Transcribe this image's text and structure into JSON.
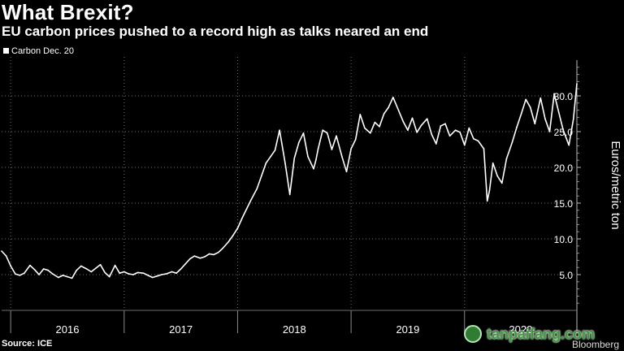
{
  "header": {
    "title": "What Brexit?",
    "subtitle": "EU carbon prices pushed to a record high as talks neared an end"
  },
  "footer": {
    "source": "Source: ICE",
    "brand": "Bloomberg"
  },
  "watermark": {
    "text": "tanpaifang.com"
  },
  "colors": {
    "background": "#000000",
    "line": "#ffffff",
    "grid": "#6e6e6e",
    "watermark": "#3b9b3b"
  },
  "chart_data": {
    "type": "line",
    "title": "What Brexit?",
    "subtitle": "EU carbon prices pushed to a record high as talks neared an end",
    "ylabel": "Euros/metric ton",
    "xlabel": "",
    "ylim": [
      0,
      35
    ],
    "xlim": [
      2015.92,
      2020.99
    ],
    "yticks": [
      5,
      10,
      15,
      20,
      25,
      30
    ],
    "ytick_labels": [
      "5.0",
      "10.0",
      "15.0",
      "20.0",
      "25.0",
      "30.0"
    ],
    "x_categories": [
      "2016",
      "2017",
      "2018",
      "2019",
      "2020"
    ],
    "year_bounds": [
      2016,
      2017,
      2018,
      2019,
      2020
    ],
    "grid": true,
    "legend_position": "top-left",
    "series": [
      {
        "name": "Carbon Dec. 20",
        "x": [
          2015.92,
          2015.96,
          2016.0,
          2016.04,
          2016.08,
          2016.12,
          2016.17,
          2016.21,
          2016.25,
          2016.29,
          2016.33,
          2016.37,
          2016.42,
          2016.46,
          2016.5,
          2016.54,
          2016.58,
          2016.62,
          2016.67,
          2016.71,
          2016.75,
          2016.79,
          2016.83,
          2016.87,
          2016.92,
          2016.96,
          2017.0,
          2017.04,
          2017.08,
          2017.12,
          2017.17,
          2017.21,
          2017.25,
          2017.29,
          2017.33,
          2017.37,
          2017.42,
          2017.46,
          2017.5,
          2017.54,
          2017.58,
          2017.62,
          2017.67,
          2017.71,
          2017.75,
          2017.79,
          2017.83,
          2017.87,
          2017.92,
          2017.96,
          2018.0,
          2018.04,
          2018.08,
          2018.12,
          2018.17,
          2018.21,
          2018.25,
          2018.29,
          2018.33,
          2018.37,
          2018.42,
          2018.46,
          2018.5,
          2018.54,
          2018.58,
          2018.62,
          2018.67,
          2018.69,
          2018.71,
          2018.75,
          2018.79,
          2018.83,
          2018.87,
          2018.92,
          2018.96,
          2019.0,
          2019.04,
          2019.08,
          2019.12,
          2019.17,
          2019.21,
          2019.25,
          2019.29,
          2019.33,
          2019.37,
          2019.42,
          2019.46,
          2019.5,
          2019.54,
          2019.58,
          2019.62,
          2019.67,
          2019.71,
          2019.75,
          2019.79,
          2019.83,
          2019.87,
          2019.92,
          2019.96,
          2020.0,
          2020.04,
          2020.08,
          2020.12,
          2020.17,
          2020.2,
          2020.22,
          2020.25,
          2020.29,
          2020.33,
          2020.37,
          2020.42,
          2020.46,
          2020.5,
          2020.54,
          2020.58,
          2020.62,
          2020.67,
          2020.71,
          2020.75,
          2020.79,
          2020.83,
          2020.87,
          2020.92,
          2020.96,
          2020.99
        ],
        "values": [
          8.3,
          7.6,
          6.2,
          5.1,
          4.9,
          5.2,
          6.3,
          5.7,
          5.0,
          5.8,
          5.6,
          5.1,
          4.6,
          4.9,
          4.7,
          4.5,
          5.6,
          6.2,
          5.8,
          5.4,
          5.9,
          6.4,
          5.3,
          4.7,
          6.3,
          5.2,
          5.4,
          5.1,
          5.0,
          5.3,
          5.2,
          4.9,
          4.6,
          4.8,
          5.0,
          5.1,
          5.4,
          5.2,
          5.8,
          6.5,
          7.2,
          7.6,
          7.3,
          7.5,
          7.9,
          7.8,
          8.1,
          8.7,
          9.6,
          10.5,
          11.5,
          12.9,
          14.2,
          15.5,
          17.0,
          18.8,
          20.6,
          21.5,
          22.4,
          25.2,
          20.5,
          16.2,
          21.3,
          23.5,
          24.8,
          21.5,
          19.8,
          21.0,
          22.6,
          25.2,
          24.8,
          22.5,
          24.4,
          21.5,
          19.4,
          22.6,
          23.9,
          27.4,
          25.5,
          24.8,
          26.3,
          25.7,
          27.5,
          28.4,
          29.8,
          27.9,
          26.4,
          25.2,
          26.9,
          24.9,
          25.9,
          26.8,
          24.6,
          23.3,
          25.8,
          26.1,
          24.4,
          25.2,
          24.9,
          23.1,
          25.5,
          24.0,
          23.7,
          22.6,
          15.3,
          16.8,
          20.6,
          18.8,
          17.8,
          21.2,
          23.5,
          25.6,
          27.5,
          29.5,
          28.4,
          26.1,
          29.7,
          26.8,
          25.0,
          30.3,
          27.7,
          25.2,
          23.1,
          26.8,
          31.7
        ]
      }
    ]
  }
}
